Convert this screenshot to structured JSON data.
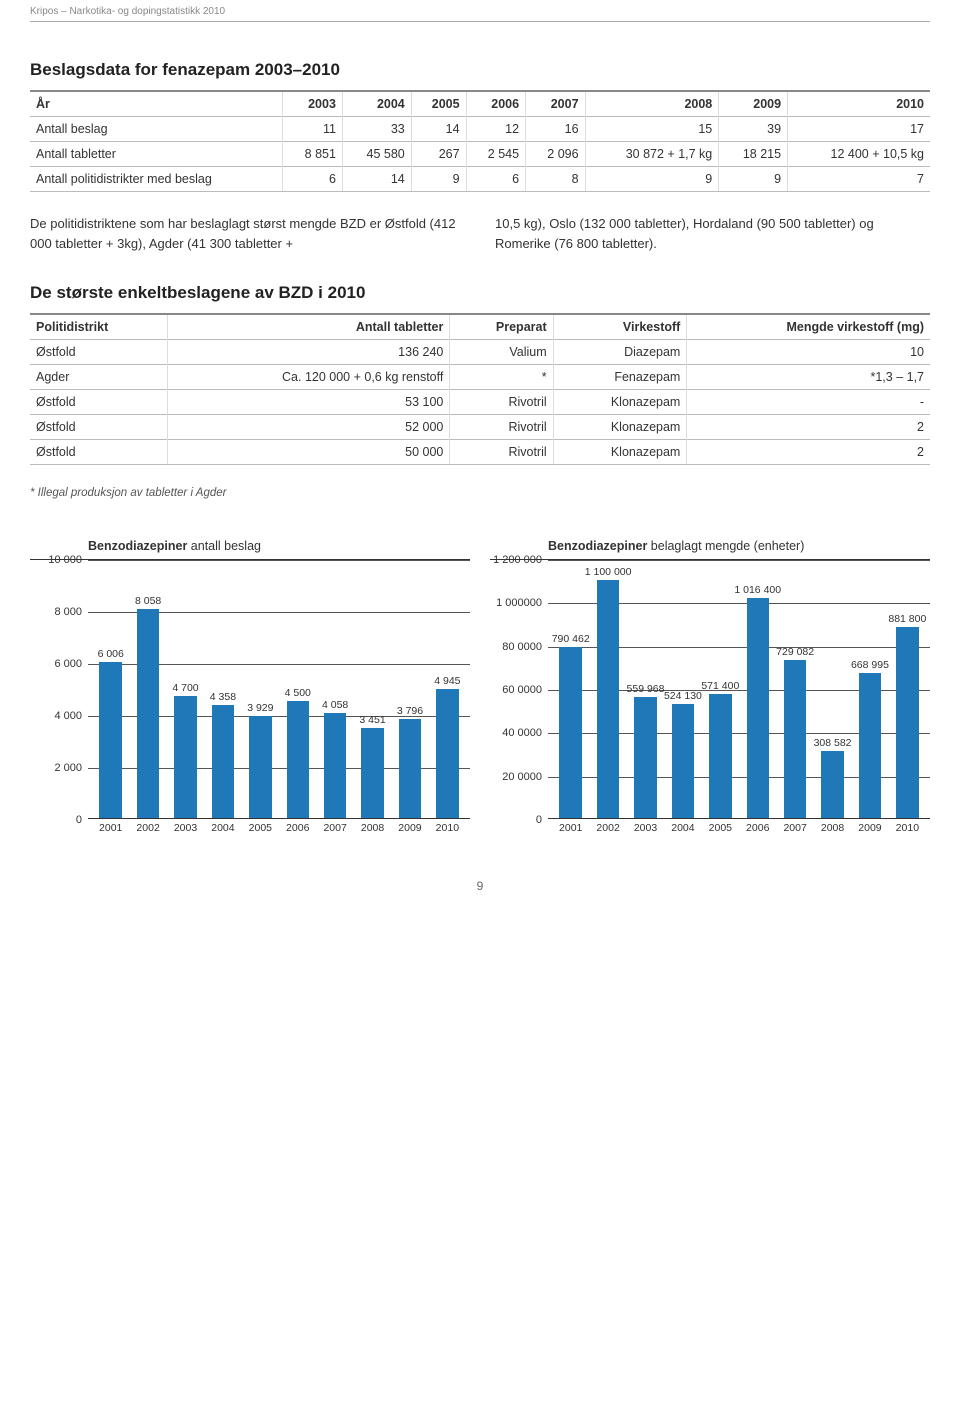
{
  "header": "Kripos – Narkotika- og dopingstatistikk 2010",
  "page_number": "9",
  "colors": {
    "bar": "#1f78b8",
    "grid": "#555555",
    "text": "#333333"
  },
  "table1": {
    "title": "Beslagsdata for fenazepam 2003–2010",
    "columns": [
      "År",
      "2003",
      "2004",
      "2005",
      "2006",
      "2007",
      "2008",
      "2009",
      "2010"
    ],
    "rows": [
      [
        "Antall beslag",
        "11",
        "33",
        "14",
        "12",
        "16",
        "15",
        "39",
        "17"
      ],
      [
        "Antall tabletter",
        "8 851",
        "45 580",
        "267",
        "2 545",
        "2 096",
        "30 872 + 1,7 kg",
        "18 215",
        "12 400 + 10,5 kg"
      ],
      [
        "Antall politidistrikter med beslag",
        "6",
        "14",
        "9",
        "6",
        "8",
        "9",
        "9",
        "7"
      ]
    ]
  },
  "paragraph": {
    "left": "De politidistriktene som har beslaglagt størst mengde BZD er Østfold (412 000 tabletter + 3kg), Agder (41 300 tabletter +",
    "right": "10,5 kg), Oslo (132 000 tabletter), Hordaland (90 500 tabletter) og Romerike (76 800 tabletter)."
  },
  "table2": {
    "title": "De største enkeltbeslagene av BZD i 2010",
    "columns": [
      "Politidistrikt",
      "Antall tabletter",
      "Preparat",
      "Virkestoff",
      "Mengde virkestoff (mg)"
    ],
    "rows": [
      [
        "Østfold",
        "136 240",
        "Valium",
        "Diazepam",
        "10"
      ],
      [
        "Agder",
        "Ca. 120 000 + 0,6 kg renstoff",
        "*",
        "Fenazepam",
        "*1,3 – 1,7"
      ],
      [
        "Østfold",
        "53 100",
        "Rivotril",
        "Klonazepam",
        "-"
      ],
      [
        "Østfold",
        "52 000",
        "Rivotril",
        "Klonazepam",
        "2"
      ],
      [
        "Østfold",
        "50 000",
        "Rivotril",
        "Klonazepam",
        "2"
      ]
    ],
    "footnote": "* Illegal produksjon av tabletter i Agder"
  },
  "chart1": {
    "type": "bar",
    "title_bold": "Benzodiazepiner",
    "title_rest": " antall beslag",
    "categories": [
      "2001",
      "2002",
      "2003",
      "2004",
      "2005",
      "2006",
      "2007",
      "2008",
      "2009",
      "2010"
    ],
    "values": [
      6006,
      8058,
      4700,
      4358,
      3929,
      4500,
      4058,
      3451,
      3796,
      4945
    ],
    "value_labels": [
      "6 006",
      "8 058",
      "4 700",
      "4 358",
      "3 929",
      "4 500",
      "4 058",
      "3 451",
      "3 796",
      "4 945"
    ],
    "y_ticks": [
      0,
      2000,
      4000,
      6000,
      8000,
      10000
    ],
    "y_tick_labels": [
      "0",
      "2 000",
      "4 000",
      "6 000",
      "8 000",
      "10 000"
    ],
    "y_max": 10000,
    "bar_color": "#1f78b8"
  },
  "chart2": {
    "type": "bar",
    "title_bold": "Benzodiazepiner",
    "title_rest": " belaglagt mengde (enheter)",
    "categories": [
      "2001",
      "2002",
      "2003",
      "2004",
      "2005",
      "2006",
      "2007",
      "2008",
      "2009",
      "2010"
    ],
    "values": [
      790462,
      1100000,
      559968,
      524130,
      571400,
      1016400,
      729082,
      308582,
      668995,
      881800
    ],
    "value_labels": [
      "790 462",
      "1 100 000",
      "559 968",
      "524 130",
      "571 400",
      "1 016 400",
      "729 082",
      "308 582",
      "668 995",
      "881 800"
    ],
    "y_ticks": [
      0,
      200000,
      400000,
      600000,
      800000,
      1000000,
      1200000
    ],
    "y_tick_labels": [
      "0",
      "20 0000",
      "40 0000",
      "60 0000",
      "80 0000",
      "1 000000",
      "1 200 000"
    ],
    "y_max": 1200000,
    "bar_color": "#1f78b8"
  }
}
